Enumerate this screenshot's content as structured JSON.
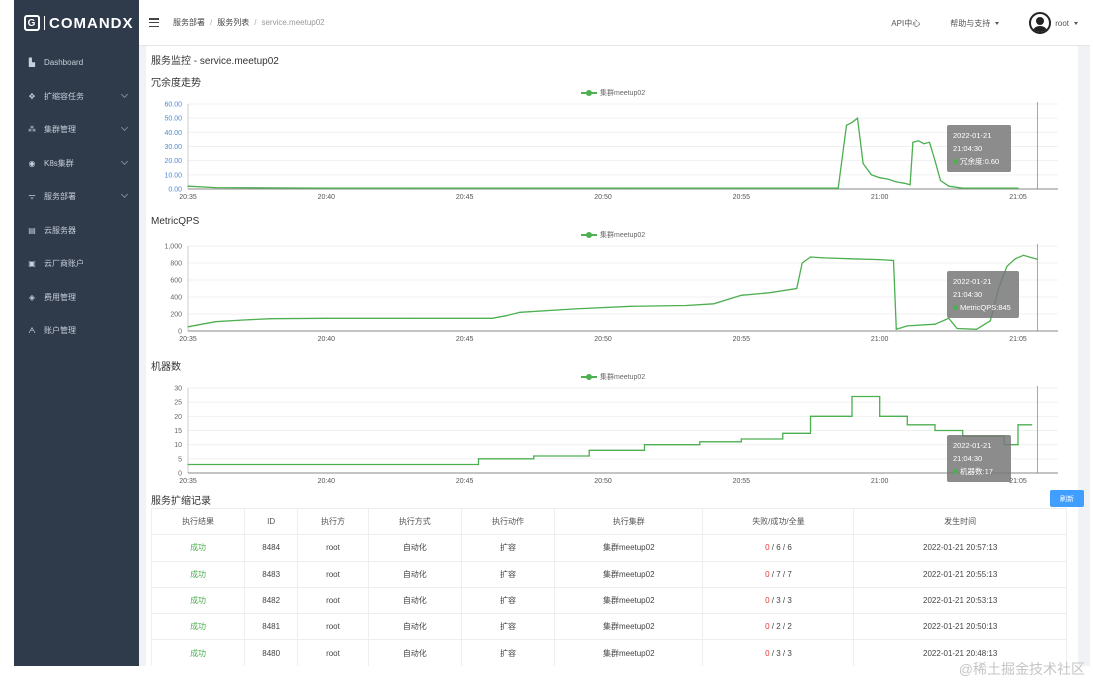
{
  "app": {
    "logo_text": "COMANDX"
  },
  "sidebar": {
    "items": [
      {
        "label": "Dashboard",
        "icon": "dashboard-icon",
        "glyph": "▙",
        "chevron": false
      },
      {
        "label": "扩缩容任务",
        "icon": "move-icon",
        "glyph": "✥",
        "chevron": true
      },
      {
        "label": "集群管理",
        "icon": "cluster-icon",
        "glyph": "⁂",
        "chevron": true
      },
      {
        "label": "K8s集群",
        "icon": "eye-icon",
        "glyph": "◉",
        "chevron": true
      },
      {
        "label": "服务部署",
        "icon": "wifi-icon",
        "glyph": "ᯤ",
        "chevron": true
      },
      {
        "label": "云服务器",
        "icon": "server-icon",
        "glyph": "▤",
        "chevron": false
      },
      {
        "label": "云厂商账户",
        "icon": "id-card-icon",
        "glyph": "▣",
        "chevron": false
      },
      {
        "label": "费用管理",
        "icon": "money-icon",
        "glyph": "◈",
        "chevron": false
      },
      {
        "label": "账户管理",
        "icon": "user-icon",
        "glyph": "ᗅ",
        "chevron": false
      }
    ]
  },
  "header": {
    "breadcrumb": [
      "服务部署",
      "服务列表",
      "service.meetup02"
    ],
    "api_center": "API中心",
    "help": "帮助与支持",
    "user": "root"
  },
  "page": {
    "title": "服务监控 - service.meetup02"
  },
  "charts": [
    {
      "title": "冗余度走势",
      "legend": "集群meetup02",
      "tooltip": {
        "date": "2022-01-21",
        "time": "21:04:30",
        "label": "冗余度:0.60"
      }
    },
    {
      "title": "MetricQPS",
      "legend": "集群meetup02",
      "tooltip": {
        "date": "2022-01-21",
        "time": "21:04:30",
        "label": "MetricQPS:845"
      }
    },
    {
      "title": "机器数",
      "legend": "集群meetup02",
      "tooltip": {
        "date": "2022-01-21",
        "time": "21:04:30",
        "label": "机器数:17"
      }
    }
  ],
  "chart_data": [
    {
      "type": "line",
      "title": "冗余度走势",
      "series": [
        {
          "name": "集群meetup02"
        }
      ],
      "x_ticks": [
        "20:35",
        "20:40",
        "20:45",
        "20:50",
        "20:55",
        "21:00",
        "21:05"
      ],
      "y_ticks": [
        "0.00",
        "10.00",
        "20.00",
        "30.00",
        "40.00",
        "50.00",
        "60.00"
      ],
      "ylim": [
        0,
        60
      ],
      "x_range": [
        "20:35",
        "21:05"
      ],
      "color": "#4caf50",
      "points": [
        [
          0,
          2
        ],
        [
          1,
          1
        ],
        [
          3,
          0.8
        ],
        [
          5,
          0.6
        ],
        [
          8,
          0.6
        ],
        [
          12,
          0.6
        ],
        [
          16,
          0.6
        ],
        [
          20,
          0.6
        ],
        [
          23.5,
          0.6
        ],
        [
          23.6,
          15
        ],
        [
          23.8,
          45
        ],
        [
          24,
          47
        ],
        [
          24.2,
          50
        ],
        [
          24.4,
          18
        ],
        [
          24.7,
          10
        ],
        [
          25,
          8
        ],
        [
          25.3,
          7
        ],
        [
          25.6,
          5
        ],
        [
          25.9,
          4
        ],
        [
          26.1,
          3
        ],
        [
          26.2,
          33
        ],
        [
          26.4,
          34
        ],
        [
          26.6,
          32
        ],
        [
          26.8,
          33
        ],
        [
          27,
          20
        ],
        [
          27.2,
          6
        ],
        [
          27.5,
          2
        ],
        [
          28,
          0.6
        ],
        [
          30,
          0.6
        ]
      ]
    },
    {
      "type": "line",
      "title": "MetricQPS",
      "series": [
        {
          "name": "集群meetup02"
        }
      ],
      "x_ticks": [
        "20:35",
        "20:40",
        "20:45",
        "20:50",
        "20:55",
        "21:00",
        "21:05"
      ],
      "y_ticks": [
        "0",
        "200",
        "400",
        "600",
        "800",
        "1,000"
      ],
      "ylim": [
        0,
        1000
      ],
      "x_range": [
        "20:35",
        "21:05"
      ],
      "color": "#4caf50",
      "points": [
        [
          0,
          50
        ],
        [
          0.5,
          80
        ],
        [
          1,
          110
        ],
        [
          2,
          130
        ],
        [
          3,
          145
        ],
        [
          5,
          150
        ],
        [
          8,
          150
        ],
        [
          11,
          150
        ],
        [
          11.5,
          180
        ],
        [
          12,
          220
        ],
        [
          14,
          260
        ],
        [
          16,
          290
        ],
        [
          18,
          300
        ],
        [
          19,
          320
        ],
        [
          20,
          420
        ],
        [
          21,
          450
        ],
        [
          22,
          500
        ],
        [
          22.2,
          800
        ],
        [
          22.5,
          870
        ],
        [
          23,
          860
        ],
        [
          24,
          850
        ],
        [
          25,
          840
        ],
        [
          25.5,
          830
        ],
        [
          25.6,
          20
        ],
        [
          26,
          60
        ],
        [
          27,
          80
        ],
        [
          27.5,
          150
        ],
        [
          27.8,
          30
        ],
        [
          28.5,
          20
        ],
        [
          29,
          120
        ],
        [
          29.3,
          500
        ],
        [
          29.6,
          760
        ],
        [
          29.9,
          850
        ],
        [
          30.2,
          890
        ],
        [
          30.4,
          870
        ],
        [
          30.7,
          845
        ]
      ]
    },
    {
      "type": "line",
      "title": "机器数",
      "series": [
        {
          "name": "集群meetup02"
        }
      ],
      "x_ticks": [
        "20:35",
        "20:40",
        "20:45",
        "20:50",
        "20:55",
        "21:00",
        "21:05"
      ],
      "y_ticks": [
        "0",
        "5",
        "10",
        "15",
        "20",
        "25",
        "30"
      ],
      "ylim": [
        0,
        30
      ],
      "x_range": [
        "20:35",
        "21:05"
      ],
      "color": "#4caf50",
      "points": [
        [
          0,
          3
        ],
        [
          10.5,
          3
        ],
        [
          10.5,
          5
        ],
        [
          12.5,
          5
        ],
        [
          12.5,
          6
        ],
        [
          14.5,
          6
        ],
        [
          14.5,
          8
        ],
        [
          16.5,
          8
        ],
        [
          16.5,
          10
        ],
        [
          18.5,
          10
        ],
        [
          18.5,
          11
        ],
        [
          20,
          11
        ],
        [
          20,
          12
        ],
        [
          21.5,
          12
        ],
        [
          21.5,
          14
        ],
        [
          22.5,
          14
        ],
        [
          22.5,
          20
        ],
        [
          24,
          20
        ],
        [
          24,
          27
        ],
        [
          25,
          27
        ],
        [
          25,
          20
        ],
        [
          26,
          20
        ],
        [
          26,
          17
        ],
        [
          27,
          17
        ],
        [
          27,
          15
        ],
        [
          28,
          15
        ],
        [
          28,
          13
        ],
        [
          29.5,
          13
        ],
        [
          29.5,
          10
        ],
        [
          30,
          10
        ],
        [
          30,
          17
        ],
        [
          30.5,
          17
        ]
      ]
    }
  ],
  "scaling_records": {
    "title": "服务扩缩记录",
    "refresh_label": "刷新",
    "columns": [
      "执行结果",
      "ID",
      "执行方",
      "执行方式",
      "执行动作",
      "执行集群",
      "失败/成功/全量",
      "发生时间"
    ],
    "rows": [
      {
        "result": "成功",
        "id": "8484",
        "executor": "root",
        "mode": "自动化",
        "action": "扩容",
        "cluster": "集群meetup02",
        "failed": "0",
        "success": "6",
        "total": "6",
        "time": "2022-01-21 20:57:13"
      },
      {
        "result": "成功",
        "id": "8483",
        "executor": "root",
        "mode": "自动化",
        "action": "扩容",
        "cluster": "集群meetup02",
        "failed": "0",
        "success": "7",
        "total": "7",
        "time": "2022-01-21 20:55:13"
      },
      {
        "result": "成功",
        "id": "8482",
        "executor": "root",
        "mode": "自动化",
        "action": "扩容",
        "cluster": "集群meetup02",
        "failed": "0",
        "success": "3",
        "total": "3",
        "time": "2022-01-21 20:53:13"
      },
      {
        "result": "成功",
        "id": "8481",
        "executor": "root",
        "mode": "自动化",
        "action": "扩容",
        "cluster": "集群meetup02",
        "failed": "0",
        "success": "2",
        "total": "2",
        "time": "2022-01-21 20:50:13"
      },
      {
        "result": "成功",
        "id": "8480",
        "executor": "root",
        "mode": "自动化",
        "action": "扩容",
        "cluster": "集群meetup02",
        "failed": "0",
        "success": "3",
        "total": "3",
        "time": "2022-01-21 20:48:13"
      }
    ]
  },
  "watermark": "@稀土掘金技术社区"
}
